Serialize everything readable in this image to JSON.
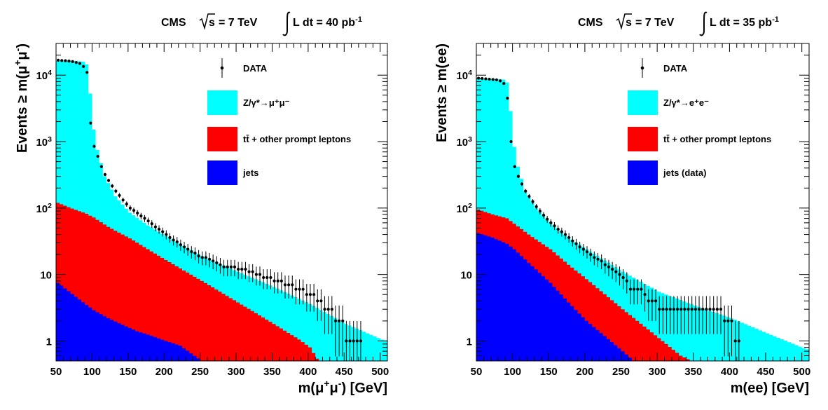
{
  "chart_data": [
    {
      "type": "area",
      "title_parts": {
        "experiment": "CMS",
        "energy_sqrt": "s",
        "energy_value": "= 7 TeV",
        "lumi_text": "L dt = 40 pb",
        "lumi_exp": "-1"
      },
      "xlabel": "m(μ⁺μ⁻) [GeV]",
      "xlabel_parts": {
        "a": "m(μ",
        "b": "+",
        "c": "μ",
        "d": "-",
        "e": ") [GeV]"
      },
      "ylabel": "Events ≥ m(μ⁺μ⁻)",
      "ylabel_parts": {
        "a": "Events ≥ m(μ",
        "b": "+",
        "c": "μ",
        "d": "-",
        "e": ")"
      },
      "xlim": [
        50,
        510
      ],
      "ylim": [
        0.5,
        30000
      ],
      "log_y": true,
      "x_ticks": [
        "50",
        "100",
        "150",
        "200",
        "250",
        "300",
        "350",
        "400",
        "450",
        "500"
      ],
      "y_ticks": [
        {
          "value": 1,
          "label": "1"
        },
        {
          "value": 10,
          "label": "10"
        },
        {
          "value": 100,
          "label": "10",
          "exp": "2"
        },
        {
          "value": 1000,
          "label": "10",
          "exp": "3"
        },
        {
          "value": 10000,
          "label": "10",
          "exp": "4"
        }
      ],
      "legend": {
        "placement": "top-right",
        "entries": [
          {
            "kind": "data",
            "label": "DATA"
          },
          {
            "kind": "box",
            "color": "#00ffff",
            "label": "Z/γ*→μ⁺μ⁻"
          },
          {
            "kind": "box",
            "color": "#ff0000",
            "label": "tt̄ + other prompt leptons"
          },
          {
            "kind": "box",
            "color": "#0000ff",
            "label": "jets"
          }
        ]
      },
      "series": [
        {
          "name": "Z/γ*→μ⁺μ⁻",
          "color": "#00ffff",
          "points": [
            [
              50,
              16500
            ],
            [
              70,
              16500
            ],
            [
              85,
              16000
            ],
            [
              92,
              14000
            ],
            [
              98,
              2000
            ],
            [
              105,
              750
            ],
            [
              115,
              300
            ],
            [
              130,
              150
            ],
            [
              150,
              85
            ],
            [
              175,
              55
            ],
            [
              200,
              38
            ],
            [
              250,
              19
            ],
            [
              300,
              11
            ],
            [
              350,
              6.5
            ],
            [
              400,
              3.6
            ],
            [
              450,
              1.8
            ],
            [
              500,
              1.05
            ],
            [
              510,
              1.0
            ]
          ]
        },
        {
          "name": "tt̄ + other prompt leptons",
          "color": "#ff0000",
          "points": [
            [
              50,
              120
            ],
            [
              70,
              98
            ],
            [
              90,
              82
            ],
            [
              100,
              72
            ],
            [
              120,
              52
            ],
            [
              150,
              35
            ],
            [
              175,
              24
            ],
            [
              200,
              16.5
            ],
            [
              250,
              8
            ],
            [
              300,
              3.8
            ],
            [
              350,
              1.8
            ],
            [
              385,
              1.05
            ],
            [
              400,
              0.8
            ],
            [
              412,
              0.5
            ]
          ]
        },
        {
          "name": "jets",
          "color": "#0000ff",
          "points": [
            [
              50,
              7.5
            ],
            [
              60,
              6.2
            ],
            [
              80,
              4.2
            ],
            [
              100,
              2.9
            ],
            [
              120,
              2.2
            ],
            [
              140,
              1.75
            ],
            [
              160,
              1.4
            ],
            [
              180,
              1.2
            ],
            [
              200,
              1.0
            ],
            [
              220,
              0.85
            ],
            [
              235,
              0.65
            ],
            [
              250,
              0.5
            ]
          ]
        }
      ],
      "data_points": [
        [
          53,
          16800
        ],
        [
          58,
          16600
        ],
        [
          63,
          16500
        ],
        [
          68,
          16300
        ],
        [
          73,
          16000
        ],
        [
          78,
          15500
        ],
        [
          83,
          15000
        ],
        [
          88,
          13500
        ],
        [
          93,
          11000
        ],
        [
          98,
          1900
        ],
        [
          103,
          850
        ],
        [
          108,
          600
        ],
        [
          113,
          420
        ],
        [
          118,
          320
        ],
        [
          123,
          260
        ],
        [
          128,
          215
        ],
        [
          133,
          180
        ],
        [
          138,
          155
        ],
        [
          143,
          132
        ],
        [
          148,
          115
        ],
        [
          153,
          100
        ],
        [
          158,
          92
        ],
        [
          163,
          84
        ],
        [
          168,
          76
        ],
        [
          173,
          70
        ],
        [
          178,
          64
        ],
        [
          183,
          58
        ],
        [
          188,
          52
        ],
        [
          193,
          48
        ],
        [
          198,
          44
        ],
        [
          203,
          40
        ],
        [
          208,
          36
        ],
        [
          213,
          33
        ],
        [
          218,
          31
        ],
        [
          223,
          28
        ],
        [
          228,
          26
        ],
        [
          233,
          24
        ],
        [
          238,
          22
        ],
        [
          243,
          21
        ],
        [
          248,
          19
        ],
        [
          253,
          18
        ],
        [
          258,
          18
        ],
        [
          263,
          17
        ],
        [
          268,
          16
        ],
        [
          273,
          15
        ],
        [
          278,
          14
        ],
        [
          283,
          13
        ],
        [
          288,
          13
        ],
        [
          293,
          13
        ],
        [
          298,
          13
        ],
        [
          303,
          12
        ],
        [
          308,
          12
        ],
        [
          313,
          12
        ],
        [
          318,
          11
        ],
        [
          323,
          11
        ],
        [
          328,
          10
        ],
        [
          333,
          10
        ],
        [
          338,
          9
        ],
        [
          343,
          9
        ],
        [
          348,
          9
        ],
        [
          353,
          8
        ],
        [
          358,
          8
        ],
        [
          363,
          8
        ],
        [
          368,
          7
        ],
        [
          373,
          7
        ],
        [
          378,
          7
        ],
        [
          383,
          6
        ],
        [
          388,
          6
        ],
        [
          393,
          6
        ],
        [
          398,
          5
        ],
        [
          403,
          5
        ],
        [
          408,
          5
        ],
        [
          413,
          4
        ],
        [
          418,
          4
        ],
        [
          423,
          3
        ],
        [
          428,
          3
        ],
        [
          433,
          3
        ],
        [
          438,
          2
        ],
        [
          443,
          2
        ],
        [
          448,
          2
        ],
        [
          453,
          1
        ],
        [
          458,
          1
        ],
        [
          463,
          1
        ],
        [
          468,
          1
        ],
        [
          473,
          1
        ]
      ]
    },
    {
      "type": "area",
      "title_parts": {
        "experiment": "CMS",
        "energy_sqrt": "s",
        "energy_value": "= 7 TeV",
        "lumi_text": "L dt = 35 pb",
        "lumi_exp": "-1"
      },
      "xlabel": "m(ee) [GeV]",
      "xlabel_parts": {
        "a": "m(ee) [GeV]"
      },
      "ylabel": "Events ≥ m(ee)",
      "ylabel_parts": {
        "a": "Events ≥ m(ee)"
      },
      "xlim": [
        50,
        510
      ],
      "ylim": [
        0.5,
        30000
      ],
      "log_y": true,
      "x_ticks": [
        "50",
        "100",
        "150",
        "200",
        "250",
        "300",
        "350",
        "400",
        "450",
        "500"
      ],
      "y_ticks": [
        {
          "value": 1,
          "label": "1"
        },
        {
          "value": 10,
          "label": "10"
        },
        {
          "value": 100,
          "label": "10",
          "exp": "2"
        },
        {
          "value": 1000,
          "label": "10",
          "exp": "3"
        },
        {
          "value": 10000,
          "label": "10",
          "exp": "4"
        }
      ],
      "legend": {
        "placement": "top-right",
        "entries": [
          {
            "kind": "data",
            "label": "DATA"
          },
          {
            "kind": "box",
            "color": "#00ffff",
            "label": "Z/γ*→e⁺e⁻"
          },
          {
            "kind": "box",
            "color": "#ff0000",
            "label": "tt̄ + other prompt leptons"
          },
          {
            "kind": "box",
            "color": "#0000ff",
            "label": "jets (data)"
          }
        ]
      },
      "series": [
        {
          "name": "Z/γ*→e⁺e⁻",
          "color": "#00ffff",
          "points": [
            [
              50,
              8800
            ],
            [
              70,
              8800
            ],
            [
              85,
              8600
            ],
            [
              92,
              7500
            ],
            [
              98,
              1100
            ],
            [
              105,
              420
            ],
            [
              115,
              180
            ],
            [
              130,
              100
            ],
            [
              150,
              60
            ],
            [
              175,
              36
            ],
            [
              200,
              24
            ],
            [
              250,
              11
            ],
            [
              300,
              5.5
            ],
            [
              350,
              3.4
            ],
            [
              400,
              2.2
            ],
            [
              450,
              1.3
            ],
            [
              500,
              0.78
            ],
            [
              510,
              0.72
            ]
          ]
        },
        {
          "name": "tt̄ + other prompt leptons",
          "color": "#ff0000",
          "points": [
            [
              50,
              95
            ],
            [
              70,
              80
            ],
            [
              90,
              70
            ],
            [
              100,
              58
            ],
            [
              120,
              40
            ],
            [
              150,
              24
            ],
            [
              175,
              14
            ],
            [
              200,
              8.5
            ],
            [
              250,
              3
            ],
            [
              300,
              1.1
            ],
            [
              330,
              0.6
            ],
            [
              345,
              0.5
            ]
          ]
        },
        {
          "name": "jets (data)",
          "color": "#0000ff",
          "points": [
            [
              50,
              42
            ],
            [
              70,
              36
            ],
            [
              90,
              29
            ],
            [
              100,
              24
            ],
            [
              120,
              15
            ],
            [
              150,
              7.5
            ],
            [
              175,
              3.8
            ],
            [
              200,
              2
            ],
            [
              250,
              0.7
            ],
            [
              265,
              0.5
            ]
          ]
        }
      ],
      "data_points": [
        [
          53,
          9000
        ],
        [
          58,
          8900
        ],
        [
          63,
          8800
        ],
        [
          68,
          8700
        ],
        [
          73,
          8600
        ],
        [
          78,
          8500
        ],
        [
          83,
          8200
        ],
        [
          88,
          7500
        ],
        [
          93,
          4500
        ],
        [
          98,
          1000
        ],
        [
          103,
          420
        ],
        [
          108,
          300
        ],
        [
          113,
          230
        ],
        [
          118,
          180
        ],
        [
          123,
          150
        ],
        [
          128,
          125
        ],
        [
          133,
          105
        ],
        [
          138,
          90
        ],
        [
          143,
          78
        ],
        [
          148,
          68
        ],
        [
          153,
          60
        ],
        [
          158,
          54
        ],
        [
          163,
          48
        ],
        [
          168,
          44
        ],
        [
          173,
          40
        ],
        [
          178,
          36
        ],
        [
          183,
          32
        ],
        [
          188,
          29
        ],
        [
          193,
          26
        ],
        [
          198,
          24
        ],
        [
          203,
          22
        ],
        [
          208,
          20
        ],
        [
          213,
          18
        ],
        [
          218,
          17
        ],
        [
          223,
          16
        ],
        [
          228,
          14
        ],
        [
          233,
          13
        ],
        [
          238,
          12
        ],
        [
          243,
          11
        ],
        [
          248,
          10
        ],
        [
          253,
          9
        ],
        [
          258,
          8
        ],
        [
          263,
          6
        ],
        [
          268,
          6
        ],
        [
          273,
          6
        ],
        [
          278,
          6
        ],
        [
          283,
          5
        ],
        [
          288,
          4
        ],
        [
          293,
          4
        ],
        [
          298,
          4
        ],
        [
          303,
          3
        ],
        [
          308,
          3
        ],
        [
          313,
          3
        ],
        [
          318,
          3
        ],
        [
          323,
          3
        ],
        [
          328,
          3
        ],
        [
          333,
          3
        ],
        [
          338,
          3
        ],
        [
          343,
          3
        ],
        [
          348,
          3
        ],
        [
          353,
          3
        ],
        [
          358,
          3
        ],
        [
          363,
          3
        ],
        [
          368,
          3
        ],
        [
          373,
          3
        ],
        [
          378,
          3
        ],
        [
          383,
          3
        ],
        [
          388,
          3
        ],
        [
          393,
          2
        ],
        [
          398,
          2
        ],
        [
          403,
          2
        ],
        [
          408,
          1
        ],
        [
          413,
          1
        ]
      ]
    }
  ]
}
